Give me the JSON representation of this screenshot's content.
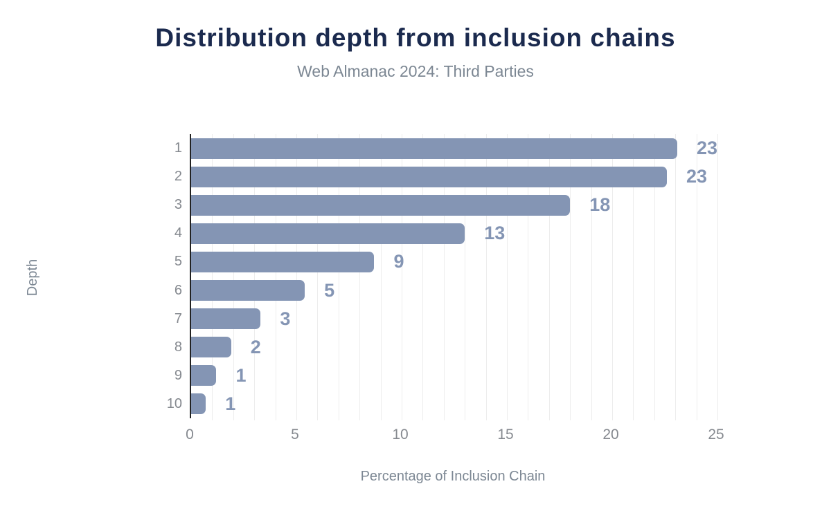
{
  "chart_data": {
    "type": "bar",
    "orientation": "horizontal",
    "title": "Distribution depth from inclusion chains",
    "subtitle": "Web Almanac 2024: Third Parties",
    "xlabel": "Percentage of Inclusion Chain",
    "ylabel": "Depth",
    "categories": [
      "1",
      "2",
      "3",
      "4",
      "5",
      "6",
      "7",
      "8",
      "9",
      "10"
    ],
    "values": [
      23.1,
      22.6,
      18.0,
      13.0,
      8.7,
      5.4,
      3.3,
      1.9,
      1.2,
      0.7
    ],
    "data_labels": [
      "23",
      "23",
      "18",
      "13",
      "9",
      "5",
      "3",
      "2",
      "1",
      "1"
    ],
    "xlim": [
      0,
      25
    ],
    "x_ticks": [
      0,
      5,
      10,
      15,
      20,
      25
    ],
    "grid_interval": 1,
    "grid": "vertical-light",
    "legend": "none",
    "colors": {
      "bar": "#8495b4",
      "data_label": "#8495b4",
      "title": "#1b2a4e",
      "subtitle": "#7c8793",
      "axis_text": "#85898f",
      "axis_line": "#222222",
      "gridline": "#ededed",
      "background": "#ffffff"
    }
  }
}
